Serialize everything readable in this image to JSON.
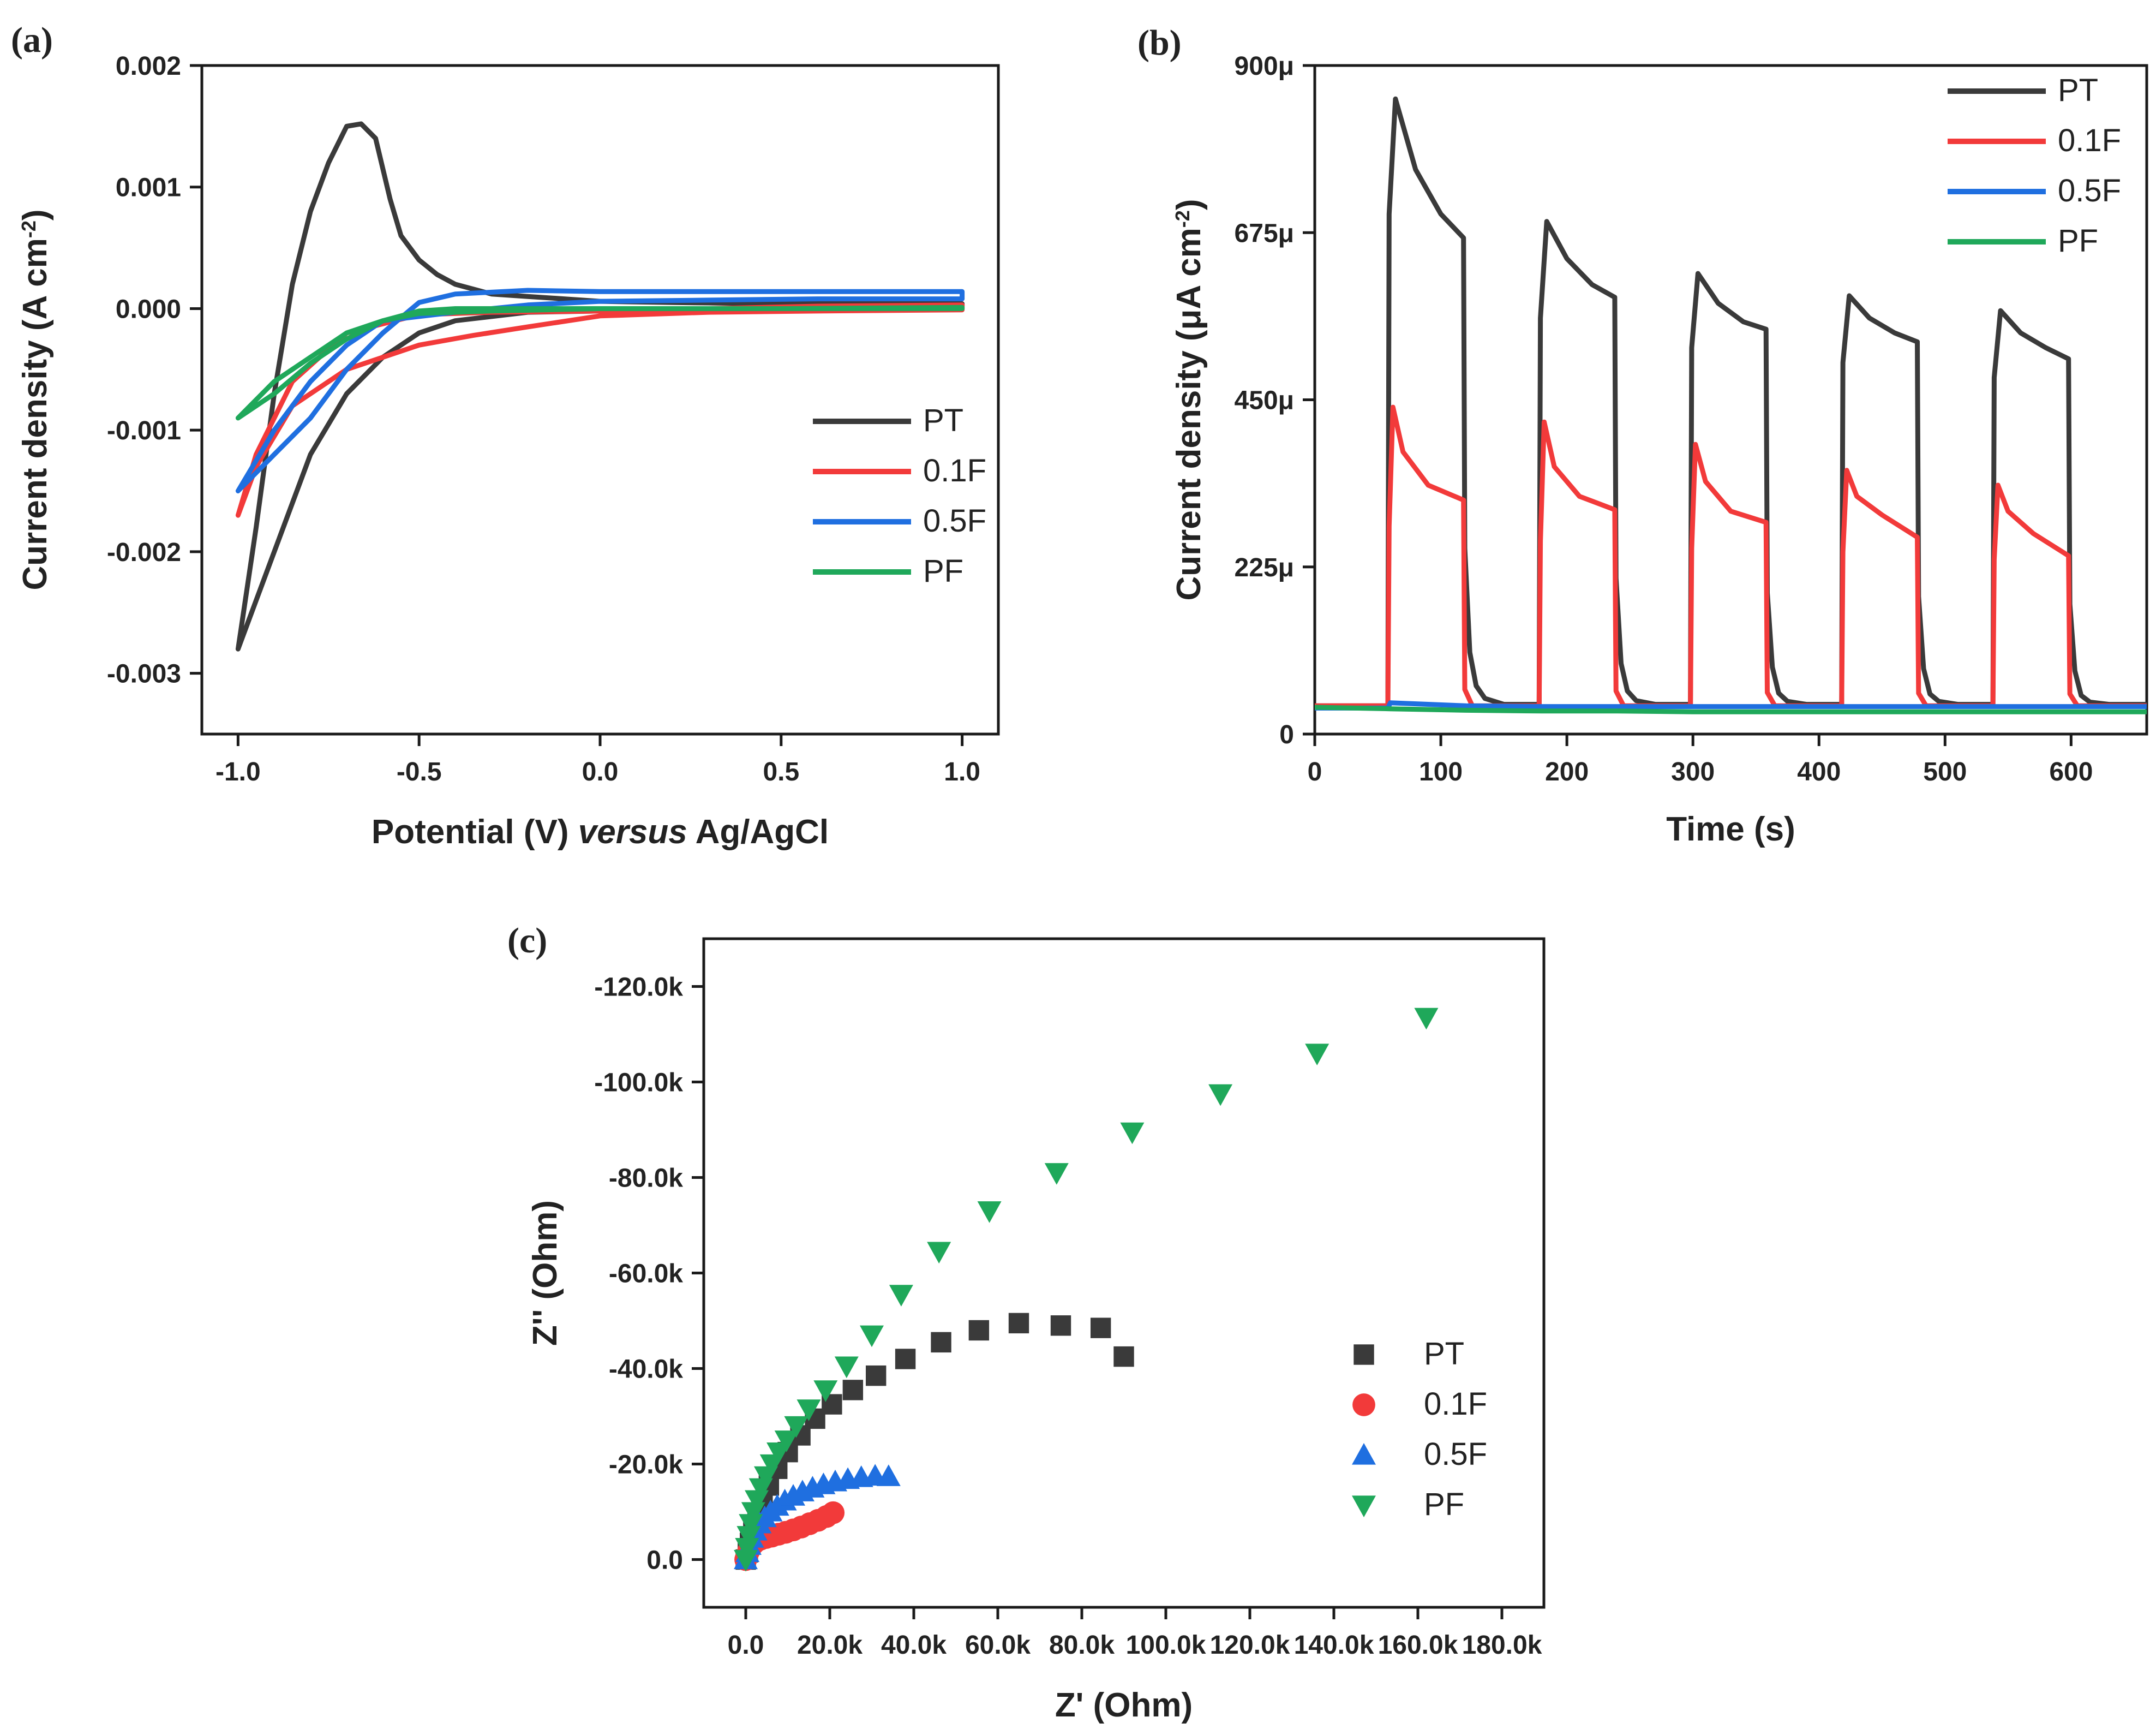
{
  "figure": {
    "panels": [
      {
        "id": "a",
        "label": "(a)"
      },
      {
        "id": "b",
        "label": "(b)"
      },
      {
        "id": "c",
        "label": "(c)"
      }
    ]
  },
  "colors": {
    "PT": "#3a3a3a",
    "0.1F": "#f23a3a",
    "0.5F": "#1f6fe0",
    "PF": "#1fa85a"
  },
  "chart_data": [
    {
      "id": "a",
      "type": "line",
      "title": "",
      "xlabel": "Potential (V) versus Ag/AgCl",
      "xlabel_parts": [
        "Potential (V) ",
        "versus",
        " Ag/AgCl"
      ],
      "ylabel": "Current density (A cm-2)",
      "ylabel_parts": [
        "Current density (A cm",
        "-2",
        ")"
      ],
      "xlim": [
        -1.1,
        1.1
      ],
      "ylim": [
        -0.0035,
        0.002
      ],
      "xticks": [
        -1.0,
        -0.5,
        0.0,
        0.5,
        1.0
      ],
      "xtick_labels": [
        "-1.0",
        "-0.5",
        "0.0",
        "0.5",
        "1.0"
      ],
      "yticks": [
        -0.003,
        -0.002,
        -0.001,
        0.0,
        0.001,
        0.002
      ],
      "ytick_labels": [
        "-0.003",
        "-0.002",
        "-0.001",
        "0.000",
        "0.001",
        "0.002"
      ],
      "legend": {
        "entries": [
          "PT",
          "0.1F",
          "0.5F",
          "PF"
        ],
        "placement": "lower-right"
      },
      "series": [
        {
          "name": "PT",
          "x": [
            -1.0,
            -0.95,
            -0.9,
            -0.85,
            -0.8,
            -0.75,
            -0.7,
            -0.66,
            -0.62,
            -0.58,
            -0.55,
            -0.5,
            -0.45,
            -0.4,
            -0.3,
            -0.2,
            -0.1,
            0.0,
            0.2,
            0.5,
            0.8,
            1.0,
            1.0,
            0.8,
            0.5,
            0.2,
            0.0,
            -0.2,
            -0.4,
            -0.5,
            -0.6,
            -0.7,
            -0.8,
            -0.9,
            -1.0
          ],
          "y": [
            -0.0028,
            -0.0018,
            -0.0007,
            0.0002,
            0.0008,
            0.0012,
            0.0015,
            0.00152,
            0.0014,
            0.0009,
            0.0006,
            0.0004,
            0.00028,
            0.0002,
            0.00012,
            0.0001,
            8e-05,
            6e-05,
            5e-05,
            4e-05,
            4e-05,
            4e-05,
            2e-05,
            0.0,
            0.0,
            0.0,
            -2e-05,
            -3e-05,
            -0.0001,
            -0.0002,
            -0.0004,
            -0.0007,
            -0.0012,
            -0.002,
            -0.0028
          ]
        },
        {
          "name": "0.1F",
          "x": [
            -1.0,
            -0.95,
            -0.85,
            -0.7,
            -0.5,
            -0.35,
            -0.2,
            0.0,
            0.3,
            0.6,
            1.0,
            1.0,
            0.6,
            0.3,
            0.0,
            -0.3,
            -0.5,
            -0.7,
            -0.85,
            -0.95,
            -1.0
          ],
          "y": [
            -0.0017,
            -0.0013,
            -0.0008,
            -0.0005,
            -0.0003,
            -0.00022,
            -0.00015,
            -6e-05,
            -3e-05,
            -2e-05,
            -1e-05,
            3e-05,
            2e-05,
            0.0,
            -2e-05,
            -3e-05,
            -5e-05,
            -0.0002,
            -0.0006,
            -0.0012,
            -0.0017
          ]
        },
        {
          "name": "0.5F",
          "x": [
            -1.0,
            -0.9,
            -0.8,
            -0.7,
            -0.6,
            -0.5,
            -0.4,
            -0.2,
            0.0,
            0.3,
            0.6,
            1.0,
            1.0,
            0.6,
            0.3,
            0.0,
            -0.2,
            -0.4,
            -0.6,
            -0.7,
            -0.8,
            -0.9,
            -1.0
          ],
          "y": [
            -0.0015,
            -0.0012,
            -0.0009,
            -0.0005,
            -0.0002,
            5e-05,
            0.00012,
            0.00015,
            0.00014,
            0.00014,
            0.00014,
            0.00014,
            8e-05,
            8e-05,
            7e-05,
            6e-05,
            3e-05,
            -3e-05,
            -0.0001,
            -0.0003,
            -0.0006,
            -0.001,
            -0.0015
          ]
        },
        {
          "name": "PF",
          "x": [
            -1.0,
            -0.9,
            -0.8,
            -0.7,
            -0.6,
            -0.5,
            -0.4,
            -0.2,
            0.0,
            0.5,
            1.0,
            1.0,
            0.5,
            0.0,
            -0.3,
            -0.5,
            -0.6,
            -0.7,
            -0.8,
            -0.9,
            -1.0
          ],
          "y": [
            -0.0009,
            -0.0007,
            -0.00045,
            -0.00025,
            -0.0001,
            -2e-05,
            0.0,
            0.0,
            0.0,
            0.0,
            1e-05,
            0.0,
            0.0,
            0.0,
            -2e-05,
            -4e-05,
            -0.0001,
            -0.0002,
            -0.0004,
            -0.0006,
            -0.0009
          ]
        }
      ]
    },
    {
      "id": "b",
      "type": "line",
      "title": "",
      "xlabel": "Time (s)",
      "ylabel": "Current density (μA cm-2)",
      "ylabel_parts": [
        "Current density (μA cm",
        "-2",
        ")"
      ],
      "xlim": [
        0,
        660
      ],
      "ylim": [
        0,
        900
      ],
      "xticks": [
        0,
        100,
        200,
        300,
        400,
        500,
        600
      ],
      "xtick_labels": [
        "0",
        "100",
        "200",
        "300",
        "400",
        "500",
        "600"
      ],
      "yticks": [
        0,
        225,
        450,
        675,
        900
      ],
      "ytick_labels": [
        "0",
        "225μ",
        "450μ",
        "675μ",
        "900μ"
      ],
      "legend": {
        "entries": [
          "PT",
          "0.1F",
          "0.5F",
          "PF"
        ],
        "placement": "top-right"
      },
      "series": [
        {
          "name": "PT",
          "x": [
            0,
            58,
            59,
            64,
            80,
            100,
            118,
            119,
            123,
            128,
            135,
            150,
            178,
            179,
            184,
            200,
            220,
            238,
            239,
            243,
            248,
            255,
            270,
            298,
            299,
            304,
            320,
            340,
            358,
            359,
            363,
            368,
            375,
            390,
            418,
            419,
            424,
            440,
            460,
            478,
            479,
            483,
            488,
            495,
            510,
            538,
            539,
            544,
            560,
            580,
            598,
            599,
            603,
            608,
            615,
            630,
            660
          ],
          "y": [
            38,
            38,
            700,
            855,
            760,
            700,
            668,
            250,
            110,
            65,
            48,
            40,
            40,
            560,
            690,
            640,
            605,
            588,
            210,
            95,
            58,
            45,
            40,
            40,
            520,
            620,
            580,
            555,
            545,
            190,
            90,
            55,
            44,
            40,
            40,
            500,
            590,
            560,
            540,
            528,
            185,
            88,
            54,
            44,
            40,
            40,
            480,
            570,
            540,
            520,
            505,
            175,
            85,
            52,
            43,
            40,
            40
          ]
        },
        {
          "name": "0.1F",
          "x": [
            0,
            58,
            59,
            62,
            70,
            90,
            118,
            119,
            125,
            178,
            179,
            182,
            190,
            210,
            238,
            239,
            245,
            298,
            299,
            302,
            310,
            330,
            358,
            359,
            365,
            418,
            419,
            422,
            430,
            450,
            478,
            479,
            485,
            538,
            539,
            542,
            550,
            570,
            598,
            599,
            605,
            660
          ],
          "y": [
            38,
            38,
            280,
            440,
            380,
            335,
            315,
            60,
            38,
            38,
            260,
            420,
            360,
            320,
            302,
            58,
            38,
            38,
            250,
            390,
            340,
            300,
            285,
            56,
            38,
            38,
            245,
            355,
            320,
            295,
            265,
            55,
            38,
            38,
            235,
            335,
            300,
            270,
            240,
            54,
            38,
            38
          ]
        },
        {
          "name": "0.5F",
          "x": [
            0,
            58,
            60,
            120,
            180,
            240,
            300,
            360,
            420,
            480,
            540,
            600,
            660
          ],
          "y": [
            35,
            35,
            42,
            38,
            37,
            37,
            37,
            37,
            37,
            37,
            37,
            37,
            37
          ]
        },
        {
          "name": "PF",
          "x": [
            0,
            60,
            120,
            180,
            240,
            300,
            360,
            420,
            480,
            540,
            600,
            660
          ],
          "y": [
            36,
            34,
            32,
            31,
            31,
            30,
            30,
            30,
            30,
            30,
            30,
            30
          ]
        }
      ]
    },
    {
      "id": "c",
      "type": "scatter",
      "title": "",
      "xlabel": "Z' (Ohm)",
      "ylabel": "Z'' (Ohm)",
      "xlim": [
        -10000,
        190000
      ],
      "ylim": [
        -130000,
        10000
      ],
      "y_inverted": true,
      "xticks": [
        0,
        20000,
        40000,
        60000,
        80000,
        100000,
        120000,
        140000,
        160000,
        180000
      ],
      "xtick_labels": [
        "0.0",
        "20.0k",
        "40.0k",
        "60.0k",
        "80.0k",
        "100.0k",
        "120.0k",
        "140.0k",
        "160.0k",
        "180.0k"
      ],
      "yticks": [
        0,
        -20000,
        -40000,
        -60000,
        -80000,
        -100000,
        -120000
      ],
      "ytick_labels": [
        "0.0",
        "-20.0k",
        "-40.0k",
        "-60.0k",
        "-80.0k",
        "-100.0k",
        "-120.0k"
      ],
      "legend": {
        "entries": [
          "PT",
          "0.1F",
          "0.5F",
          "PF"
        ],
        "placement": "lower-right"
      },
      "series": [
        {
          "name": "PT",
          "marker": "square",
          "x": [
            0,
            500,
            1000,
            1800,
            2800,
            4000,
            5500,
            7500,
            10000,
            13000,
            16500,
            20500,
            25500,
            31000,
            38000,
            46500,
            55500,
            65000,
            75000,
            84500,
            90000
          ],
          "y": [
            0,
            -1500,
            -3500,
            -6000,
            -9000,
            -12000,
            -15500,
            -19000,
            -22500,
            -26000,
            -29500,
            -32500,
            -35500,
            -38500,
            -42000,
            -45500,
            -48000,
            -49500,
            -49000,
            -48500,
            -42500
          ]
        },
        {
          "name": "0.1F",
          "marker": "circle",
          "x": [
            0,
            300,
            700,
            1200,
            1800,
            2600,
            3600,
            4800,
            6200,
            7800,
            9500,
            11300,
            13200,
            15200,
            17200,
            19200,
            20800
          ],
          "y": [
            0,
            -900,
            -1800,
            -2600,
            -3300,
            -3900,
            -4300,
            -4600,
            -4900,
            -5300,
            -5700,
            -6200,
            -6800,
            -7500,
            -8200,
            -9000,
            -9800
          ]
        },
        {
          "name": "0.5F",
          "marker": "triangle-up",
          "x": [
            0,
            400,
            900,
            1500,
            2300,
            3300,
            4500,
            5900,
            7500,
            9300,
            11300,
            13500,
            15900,
            18500,
            21300,
            24300,
            27500,
            30800,
            34000
          ],
          "y": [
            0,
            -1500,
            -3000,
            -4500,
            -6000,
            -7500,
            -8800,
            -10000,
            -11200,
            -12300,
            -13300,
            -14200,
            -15000,
            -15700,
            -16300,
            -16800,
            -17200,
            -17500,
            -17400
          ]
        },
        {
          "name": "PF",
          "marker": "triangle-down",
          "x": [
            0,
            300,
            700,
            1200,
            1800,
            2600,
            3600,
            4800,
            6200,
            7800,
            9700,
            12000,
            15000,
            19000,
            24000,
            30000,
            37000,
            46000,
            58000,
            74000,
            92000,
            113000,
            136000,
            162000
          ],
          "y": [
            0,
            -2500,
            -5000,
            -7500,
            -10000,
            -12500,
            -15000,
            -17500,
            -20000,
            -22500,
            -25000,
            -28000,
            -31500,
            -35500,
            -40500,
            -47000,
            -55500,
            -64500,
            -73000,
            -81000,
            -89500,
            -97500,
            -106000,
            -113500
          ]
        }
      ]
    }
  ]
}
